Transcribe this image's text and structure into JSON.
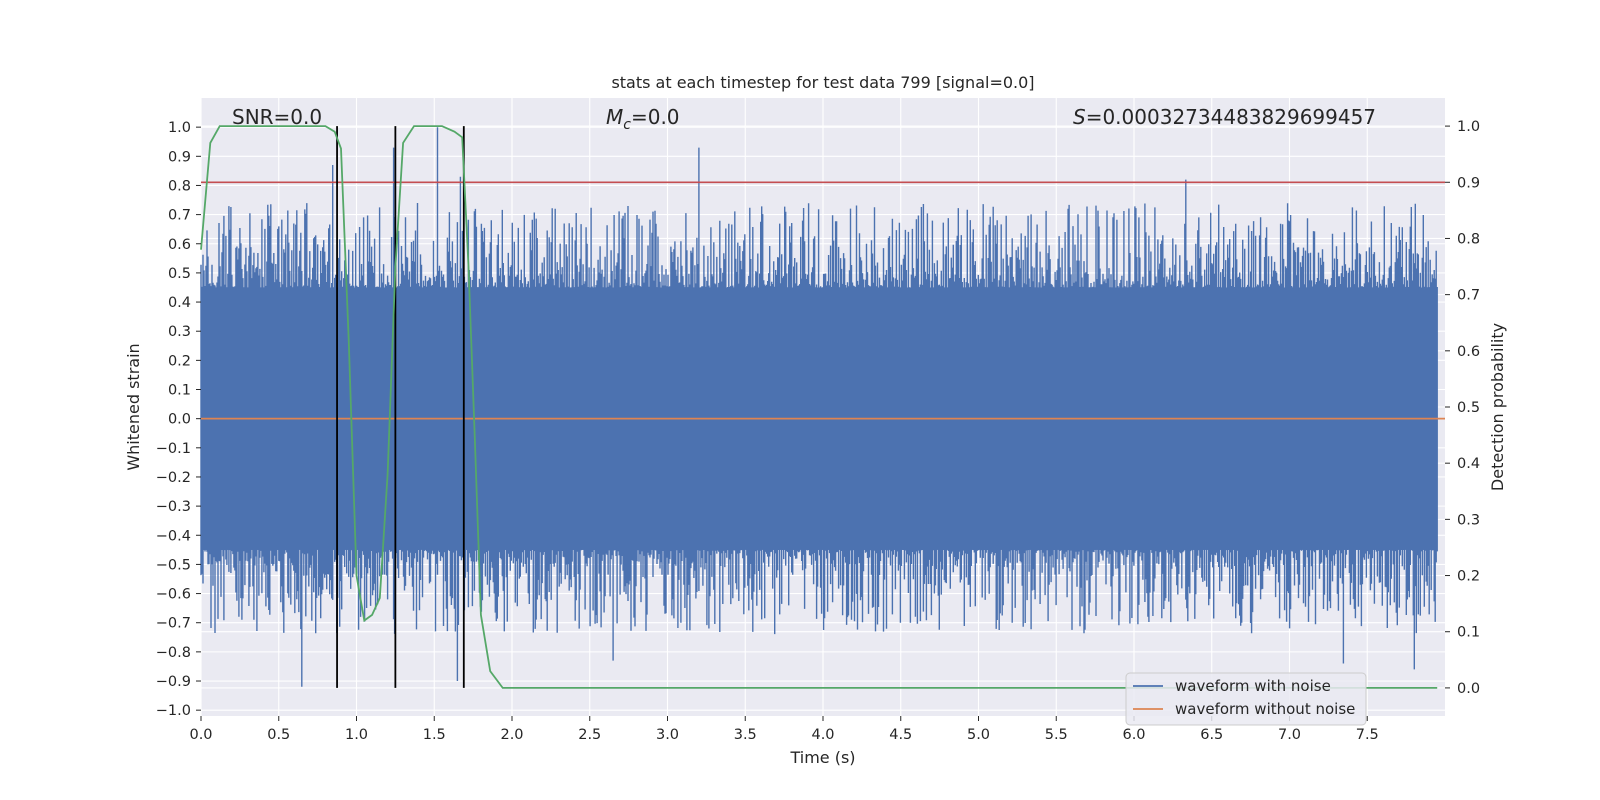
{
  "chart_data": {
    "type": "line",
    "title": "stats at each timestep for test data 799 [signal=0.0]",
    "xlabel": "Time (s)",
    "ylabel_left": "Whitened strain",
    "ylabel_right": "Detection probability",
    "xlim": [
      0.0,
      8.0
    ],
    "ylim_left": [
      -1.02,
      1.1
    ],
    "ylim_right": [
      -0.05,
      1.05
    ],
    "x_ticks": [
      0.0,
      0.5,
      1.0,
      1.5,
      2.0,
      2.5,
      3.0,
      3.5,
      4.0,
      4.5,
      5.0,
      5.5,
      6.0,
      6.5,
      7.0,
      7.5
    ],
    "x_tick_labels": [
      "0.0",
      "0.5",
      "1.0",
      "1.5",
      "2.0",
      "2.5",
      "3.0",
      "3.5",
      "4.0",
      "4.5",
      "5.0",
      "5.5",
      "6.0",
      "6.5",
      "7.0",
      "7.5"
    ],
    "y_left_ticks": [
      1.0,
      0.9,
      0.8,
      0.7,
      0.6,
      0.5,
      0.4,
      0.3,
      0.2,
      0.1,
      0.0,
      -0.1,
      -0.2,
      -0.3,
      -0.4,
      -0.5,
      -0.6,
      -0.7,
      -0.8,
      -0.9,
      -1.0
    ],
    "y_left_tick_labels": [
      "1.0",
      "0.9",
      "0.8",
      "0.7",
      "0.6",
      "0.5",
      "0.4",
      "0.3",
      "0.2",
      "0.1",
      "0.0",
      "−0.1",
      "−0.2",
      "−0.3",
      "−0.4",
      "−0.5",
      "−0.6",
      "−0.7",
      "−0.8",
      "−0.9",
      "−1.0"
    ],
    "y_right_ticks": [
      1.0,
      0.9,
      0.8,
      0.7,
      0.6,
      0.5,
      0.4,
      0.3,
      0.2,
      0.1,
      0.0
    ],
    "y_right_tick_labels": [
      "1.0",
      "0.9",
      "0.8",
      "0.7",
      "0.6",
      "0.5",
      "0.4",
      "0.3",
      "0.2",
      "0.1",
      "0.0"
    ],
    "grid": true,
    "annotations": {
      "snr": "SNR=0.0",
      "mc_symbol": "M",
      "mc_subscript": "c",
      "mc_value": "=0.0",
      "s_symbol": "S",
      "s_value": "=0.00032734483829699457"
    },
    "legend": {
      "placement": "lower-right",
      "entries": [
        "waveform with noise",
        "waveform without noise"
      ]
    },
    "series": [
      {
        "name": "waveform with noise",
        "axis": "left",
        "kind": "noise",
        "color": "#4c72b0",
        "band_min": -0.45,
        "band_max": 0.45,
        "typical_peak_high": 0.62,
        "typical_peak_low": -0.62,
        "max_value": 1.0,
        "min_value": -0.92,
        "notable_peaks": [
          {
            "x": 0.85,
            "y": 0.87
          },
          {
            "x": 1.24,
            "y": 0.93
          },
          {
            "x": 1.52,
            "y": 1.0
          },
          {
            "x": 1.67,
            "y": 0.83
          },
          {
            "x": 3.2,
            "y": 0.93
          },
          {
            "x": 6.33,
            "y": 0.82
          },
          {
            "x": 0.65,
            "y": -0.92
          },
          {
            "x": 1.65,
            "y": -0.9
          },
          {
            "x": 2.65,
            "y": -0.83
          },
          {
            "x": 7.35,
            "y": -0.84
          },
          {
            "x": 7.8,
            "y": -0.86
          }
        ]
      },
      {
        "name": "waveform without noise",
        "axis": "left",
        "color": "#dd8452",
        "x": [
          0.0,
          8.0
        ],
        "y": [
          0.0,
          0.0
        ]
      },
      {
        "name": "",
        "axis": "right",
        "color": "#55a868",
        "x": [
          0.0,
          0.06,
          0.12,
          0.2,
          0.3,
          0.5,
          0.7,
          0.8,
          0.86,
          0.9,
          0.95,
          1.0,
          1.05,
          1.1,
          1.15,
          1.2,
          1.25,
          1.3,
          1.37,
          1.45,
          1.55,
          1.63,
          1.68,
          1.72,
          1.76,
          1.8,
          1.86,
          1.94,
          2.5,
          4.0,
          6.0,
          7.95
        ],
        "y": [
          0.78,
          0.97,
          1.0,
          1.0,
          1.0,
          1.0,
          1.0,
          1.0,
          0.99,
          0.96,
          0.62,
          0.2,
          0.12,
          0.13,
          0.16,
          0.38,
          0.75,
          0.97,
          1.0,
          1.0,
          1.0,
          0.99,
          0.98,
          0.75,
          0.45,
          0.13,
          0.03,
          0.0,
          0.0,
          0.0,
          0.0,
          0.0
        ]
      },
      {
        "name": "",
        "axis": "right",
        "kind": "hline",
        "color": "#c44e52",
        "y": 0.9
      }
    ],
    "vertical_lines": {
      "color": "#000000",
      "x": [
        0.875,
        1.25,
        1.69
      ],
      "y_from": 0.0,
      "y_to": 1.0
    }
  }
}
